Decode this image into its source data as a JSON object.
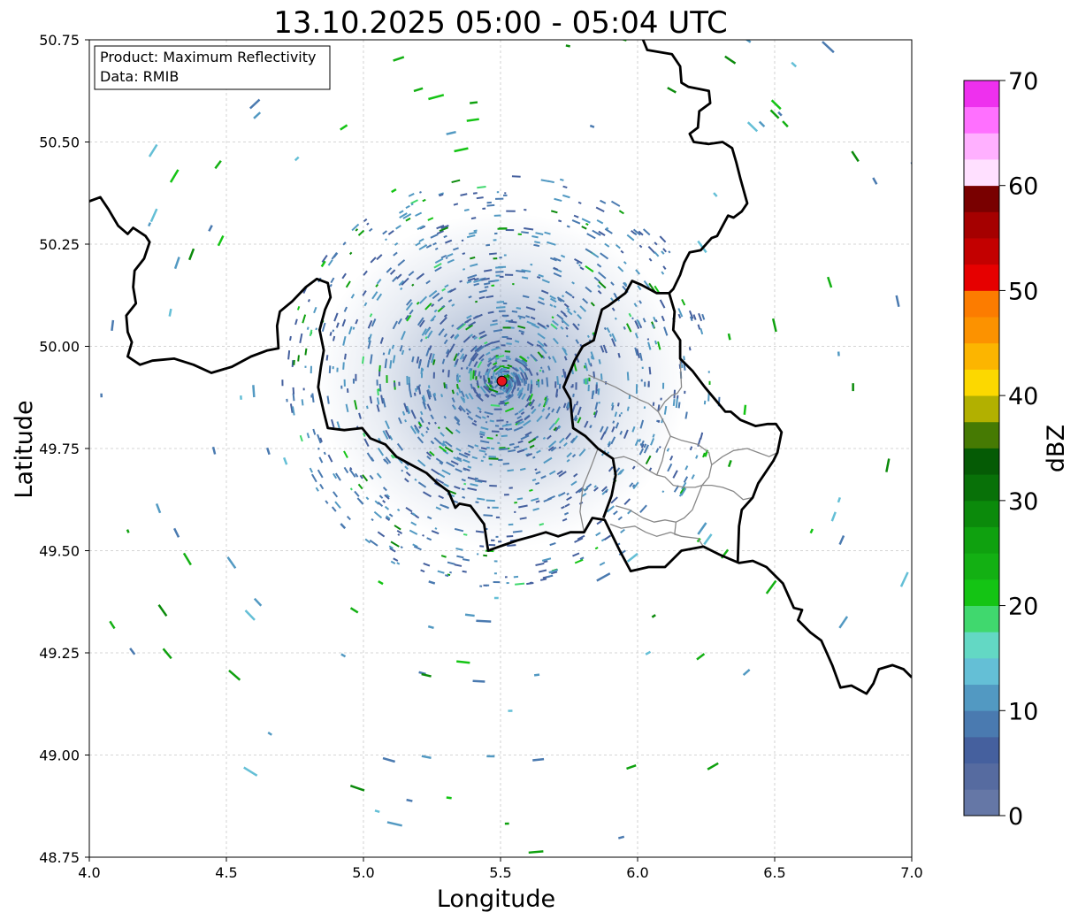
{
  "map": {
    "title": "13.10.2025 05:00 - 05:04 UTC",
    "xlabel": "Longitude",
    "ylabel": "Latitude",
    "xlim": [
      4.0,
      7.0
    ],
    "ylim": [
      48.75,
      50.75
    ],
    "x_ticks": [
      "4.0",
      "4.5",
      "5.0",
      "5.5",
      "6.0",
      "6.5",
      "7.0"
    ],
    "y_ticks": [
      "50.75",
      "50.50",
      "50.25",
      "50.00",
      "49.75",
      "49.50",
      "49.25",
      "49.00",
      "48.75"
    ],
    "grid": true,
    "info_box": {
      "product": "Product: Maximum Reflectivity",
      "source": "Data: RMIB"
    },
    "radar_site": {
      "lon": 5.505,
      "lat": 49.915,
      "color": "#e8141e"
    }
  },
  "colorbar": {
    "label": "dBZ",
    "ticks": [
      "0",
      "10",
      "20",
      "30",
      "40",
      "50",
      "60",
      "70"
    ],
    "min": 0,
    "max": 70,
    "step": 2.5,
    "colors": [
      "#6577a6",
      "#566ba0",
      "#45609e",
      "#4a7ab0",
      "#5299c2",
      "#64bfd6",
      "#63d8c4",
      "#40d86e",
      "#14c414",
      "#13b013",
      "#0fa10f",
      "#0b8a0b",
      "#087108",
      "#055b05",
      "#467a03",
      "#b2b000",
      "#fcd800",
      "#fcb500",
      "#fc9200",
      "#fc7c00",
      "#e60000",
      "#c30000",
      "#a50000",
      "#790000",
      "#ffe0ff",
      "#ffb0ff",
      "#ff70ff",
      "#ee30ee"
    ]
  },
  "borders": {
    "country_color": "#000000",
    "province_color": "#888888",
    "country": [
      [
        [
          4.0,
          50.355
        ],
        [
          4.04,
          50.365
        ],
        [
          4.07,
          50.335
        ],
        [
          4.105,
          50.295
        ],
        [
          4.14,
          50.275
        ],
        [
          4.16,
          50.29
        ],
        [
          4.205,
          50.27
        ],
        [
          4.22,
          50.255
        ],
        [
          4.2,
          50.215
        ],
        [
          4.165,
          50.185
        ],
        [
          4.16,
          50.145
        ],
        [
          4.17,
          50.105
        ],
        [
          4.135,
          50.075
        ],
        [
          4.14,
          50.035
        ],
        [
          4.155,
          50.01
        ],
        [
          4.14,
          49.975
        ],
        [
          4.185,
          49.955
        ],
        [
          4.23,
          49.965
        ],
        [
          4.31,
          49.97
        ],
        [
          4.38,
          49.955
        ],
        [
          4.445,
          49.935
        ],
        [
          4.52,
          49.95
        ],
        [
          4.59,
          49.975
        ],
        [
          4.65,
          49.99
        ],
        [
          4.69,
          49.995
        ],
        [
          4.685,
          50.05
        ],
        [
          4.695,
          50.085
        ],
        [
          4.74,
          50.11
        ],
        [
          4.79,
          50.145
        ],
        [
          4.83,
          50.165
        ],
        [
          4.87,
          50.155
        ],
        [
          4.88,
          50.12
        ],
        [
          4.86,
          50.09
        ],
        [
          4.84,
          50.04
        ],
        [
          4.855,
          49.99
        ],
        [
          4.845,
          49.95
        ],
        [
          4.835,
          49.9
        ],
        [
          4.855,
          49.84
        ],
        [
          4.87,
          49.8
        ],
        [
          4.93,
          49.795
        ],
        [
          4.995,
          49.8
        ],
        [
          5.025,
          49.775
        ],
        [
          5.08,
          49.76
        ],
        [
          5.12,
          49.73
        ],
        [
          5.175,
          49.71
        ],
        [
          5.23,
          49.69
        ],
        [
          5.27,
          49.665
        ],
        [
          5.31,
          49.645
        ],
        [
          5.335,
          49.605
        ],
        [
          5.35,
          49.615
        ],
        [
          5.39,
          49.61
        ],
        [
          5.44,
          49.565
        ],
        [
          5.455,
          49.5
        ],
        [
          5.495,
          49.51
        ],
        [
          5.56,
          49.525
        ],
        [
          5.615,
          49.535
        ],
        [
          5.665,
          49.545
        ],
        [
          5.71,
          49.535
        ],
        [
          5.755,
          49.545
        ],
        [
          5.805,
          49.545
        ],
        [
          5.835,
          49.58
        ],
        [
          5.88,
          49.575
        ],
        [
          5.935,
          49.5
        ],
        [
          5.975,
          49.45
        ],
        [
          6.04,
          49.46
        ],
        [
          6.1,
          49.46
        ],
        [
          6.16,
          49.5
        ],
        [
          6.24,
          49.51
        ],
        [
          6.3,
          49.49
        ],
        [
          6.37,
          49.47
        ],
        [
          6.42,
          49.475
        ],
        [
          6.47,
          49.46
        ],
        [
          6.53,
          49.42
        ],
        [
          6.57,
          49.36
        ],
        [
          6.6,
          49.355
        ],
        [
          6.585,
          49.33
        ],
        [
          6.63,
          49.3
        ],
        [
          6.67,
          49.28
        ],
        [
          6.71,
          49.22
        ],
        [
          6.74,
          49.165
        ],
        [
          6.78,
          49.17
        ],
        [
          6.835,
          49.15
        ],
        [
          6.86,
          49.175
        ],
        [
          6.88,
          49.21
        ],
        [
          6.93,
          49.22
        ],
        [
          6.97,
          49.21
        ],
        [
          7.0,
          49.19
        ]
      ],
      [
        [
          6.02,
          50.75
        ],
        [
          6.035,
          50.725
        ],
        [
          6.08,
          50.72
        ],
        [
          6.125,
          50.715
        ],
        [
          6.155,
          50.685
        ],
        [
          6.16,
          50.645
        ],
        [
          6.185,
          50.635
        ],
        [
          6.26,
          50.625
        ],
        [
          6.265,
          50.595
        ],
        [
          6.225,
          50.575
        ],
        [
          6.22,
          50.535
        ],
        [
          6.19,
          50.52
        ],
        [
          6.205,
          50.5
        ],
        [
          6.26,
          50.495
        ],
        [
          6.31,
          50.5
        ],
        [
          6.345,
          50.485
        ],
        [
          6.36,
          50.45
        ],
        [
          6.375,
          50.41
        ],
        [
          6.4,
          50.35
        ],
        [
          6.38,
          50.33
        ],
        [
          6.35,
          50.315
        ],
        [
          6.33,
          50.32
        ],
        [
          6.29,
          50.27
        ],
        [
          6.27,
          50.265
        ],
        [
          6.23,
          50.235
        ],
        [
          6.19,
          50.23
        ],
        [
          6.17,
          50.205
        ],
        [
          6.155,
          50.175
        ],
        [
          6.13,
          50.14
        ],
        [
          6.115,
          50.13
        ],
        [
          6.07,
          50.13
        ],
        [
          6.015,
          50.15
        ],
        [
          5.98,
          50.16
        ],
        [
          5.955,
          50.13
        ],
        [
          5.895,
          50.1
        ],
        [
          5.87,
          50.09
        ],
        [
          5.855,
          50.055
        ],
        [
          5.84,
          50.015
        ],
        [
          5.8,
          50.0
        ],
        [
          5.77,
          49.965
        ],
        [
          5.73,
          49.9
        ],
        [
          5.755,
          49.87
        ],
        [
          5.76,
          49.83
        ],
        [
          5.765,
          49.8
        ],
        [
          5.81,
          49.78
        ],
        [
          5.855,
          49.75
        ],
        [
          5.91,
          49.725
        ],
        [
          5.92,
          49.685
        ],
        [
          5.905,
          49.635
        ],
        [
          5.875,
          49.58
        ]
      ],
      [
        [
          6.115,
          50.13
        ],
        [
          6.135,
          50.085
        ],
        [
          6.13,
          50.04
        ],
        [
          6.155,
          50.015
        ],
        [
          6.155,
          49.97
        ],
        [
          6.2,
          49.94
        ],
        [
          6.245,
          49.9
        ],
        [
          6.295,
          49.86
        ],
        [
          6.32,
          49.84
        ],
        [
          6.34,
          49.84
        ],
        [
          6.375,
          49.82
        ],
        [
          6.43,
          49.805
        ],
        [
          6.475,
          49.81
        ],
        [
          6.505,
          49.81
        ],
        [
          6.525,
          49.79
        ],
        [
          6.51,
          49.74
        ],
        [
          6.495,
          49.72
        ],
        [
          6.44,
          49.665
        ],
        [
          6.42,
          49.63
        ],
        [
          6.38,
          49.6
        ],
        [
          6.37,
          49.56
        ],
        [
          6.365,
          49.47
        ]
      ]
    ],
    "province": [
      [
        [
          5.805,
          49.545
        ],
        [
          5.79,
          49.595
        ],
        [
          5.8,
          49.655
        ],
        [
          5.83,
          49.705
        ],
        [
          5.855,
          49.75
        ]
      ],
      [
        [
          5.82,
          49.93
        ],
        [
          5.87,
          49.915
        ],
        [
          5.92,
          49.9
        ],
        [
          5.96,
          49.885
        ],
        [
          6.005,
          49.87
        ],
        [
          6.04,
          49.86
        ],
        [
          6.075,
          49.84
        ],
        [
          6.1,
          49.81
        ],
        [
          6.12,
          49.78
        ],
        [
          6.16,
          49.77
        ],
        [
          6.22,
          49.76
        ],
        [
          6.26,
          49.74
        ],
        [
          6.27,
          49.71
        ],
        [
          6.26,
          49.68
        ],
        [
          6.235,
          49.66
        ]
      ],
      [
        [
          6.075,
          49.84
        ],
        [
          6.1,
          49.865
        ],
        [
          6.125,
          49.88
        ],
        [
          6.145,
          49.885
        ],
        [
          6.16,
          49.9
        ],
        [
          6.155,
          49.97
        ]
      ],
      [
        [
          5.91,
          49.725
        ],
        [
          5.95,
          49.73
        ],
        [
          5.99,
          49.72
        ],
        [
          6.03,
          49.7
        ],
        [
          6.07,
          49.685
        ],
        [
          6.1,
          49.68
        ],
        [
          6.13,
          49.66
        ],
        [
          6.17,
          49.655
        ],
        [
          6.21,
          49.655
        ],
        [
          6.235,
          49.66
        ],
        [
          6.27,
          49.66
        ],
        [
          6.31,
          49.655
        ],
        [
          6.35,
          49.645
        ],
        [
          6.385,
          49.625
        ],
        [
          6.42,
          49.63
        ]
      ],
      [
        [
          6.12,
          49.78
        ],
        [
          6.1,
          49.75
        ],
        [
          6.09,
          49.72
        ],
        [
          6.07,
          49.685
        ]
      ],
      [
        [
          6.27,
          49.71
        ],
        [
          6.31,
          49.73
        ],
        [
          6.35,
          49.745
        ],
        [
          6.4,
          49.75
        ],
        [
          6.44,
          49.74
        ],
        [
          6.48,
          49.73
        ],
        [
          6.51,
          49.74
        ]
      ],
      [
        [
          5.92,
          49.61
        ],
        [
          5.97,
          49.6
        ],
        [
          6.02,
          49.58
        ],
        [
          6.06,
          49.57
        ],
        [
          6.1,
          49.575
        ],
        [
          6.14,
          49.57
        ],
        [
          6.17,
          49.58
        ],
        [
          6.2,
          49.6
        ],
        [
          6.235,
          49.66
        ]
      ],
      [
        [
          5.9,
          49.565
        ],
        [
          5.94,
          49.555
        ],
        [
          5.99,
          49.56
        ],
        [
          6.03,
          49.545
        ],
        [
          6.07,
          49.535
        ],
        [
          6.12,
          49.545
        ],
        [
          6.16,
          49.535
        ],
        [
          6.22,
          49.53
        ],
        [
          6.24,
          49.51
        ]
      ],
      [
        [
          6.14,
          49.57
        ],
        [
          6.135,
          49.54
        ],
        [
          6.16,
          49.535
        ]
      ]
    ]
  }
}
